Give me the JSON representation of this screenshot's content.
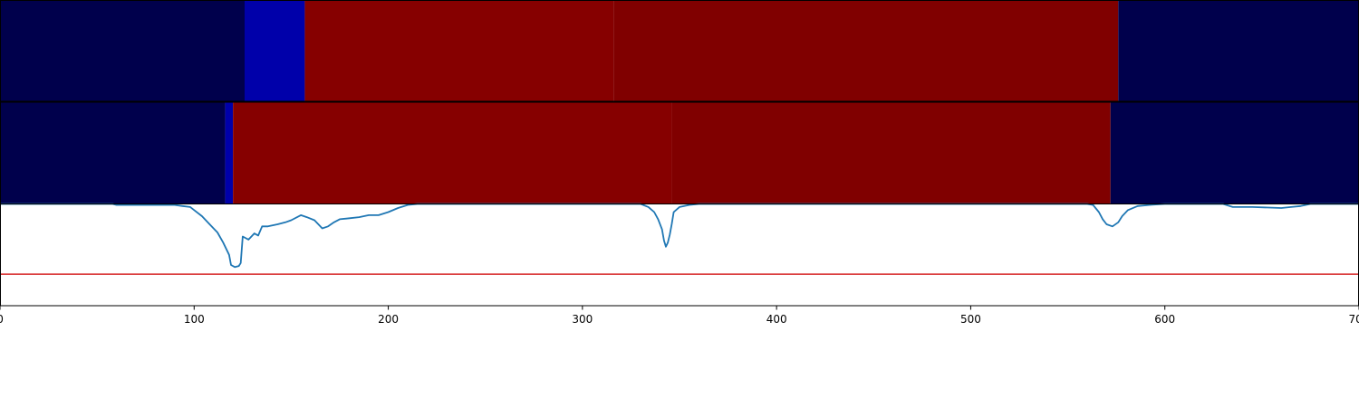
{
  "chart_data": [
    {
      "type": "heatmap",
      "xlim": [
        0,
        700
      ],
      "segments": [
        {
          "x0": 0,
          "x1": 126,
          "color": "#00004c"
        },
        {
          "x0": 126,
          "x1": 157,
          "color": "#0000aa"
        },
        {
          "x0": 157,
          "x1": 316,
          "color": "#860000"
        },
        {
          "x0": 316,
          "x1": 576,
          "color": "#800000"
        },
        {
          "x0": 576,
          "x1": 700,
          "color": "#00004c"
        }
      ]
    },
    {
      "type": "heatmap",
      "xlim": [
        0,
        700
      ],
      "segments": [
        {
          "x0": 0,
          "x1": 116,
          "color": "#00004c"
        },
        {
          "x0": 116,
          "x1": 120,
          "color": "#0000aa"
        },
        {
          "x0": 120,
          "x1": 346,
          "color": "#860000"
        },
        {
          "x0": 346,
          "x1": 572,
          "color": "#800000"
        },
        {
          "x0": 572,
          "x1": 700,
          "color": "#00004c"
        }
      ]
    },
    {
      "type": "line",
      "xlim": [
        0,
        700
      ],
      "ylim": [
        0,
        1
      ],
      "xticks": [
        0,
        100,
        200,
        300,
        400,
        500,
        600,
        700
      ],
      "threshold": {
        "y": 0.31,
        "color": "#d62728"
      },
      "series": [
        {
          "color": "#1f77b4",
          "points": [
            [
              0,
              1.0
            ],
            [
              58,
              1.0
            ],
            [
              60,
              0.99
            ],
            [
              90,
              0.99
            ],
            [
              94,
              0.98
            ],
            [
              98,
              0.97
            ],
            [
              100,
              0.94
            ],
            [
              104,
              0.88
            ],
            [
              108,
              0.8
            ],
            [
              112,
              0.72
            ],
            [
              115,
              0.62
            ],
            [
              118,
              0.5
            ],
            [
              119,
              0.4
            ],
            [
              121,
              0.38
            ],
            [
              123,
              0.39
            ],
            [
              124,
              0.42
            ],
            [
              125,
              0.68
            ],
            [
              128,
              0.65
            ],
            [
              131,
              0.71
            ],
            [
              133,
              0.69
            ],
            [
              135,
              0.78
            ],
            [
              138,
              0.78
            ],
            [
              143,
              0.8
            ],
            [
              147,
              0.82
            ],
            [
              150,
              0.84
            ],
            [
              155,
              0.89
            ],
            [
              158,
              0.87
            ],
            [
              162,
              0.84
            ],
            [
              164,
              0.8
            ],
            [
              166,
              0.76
            ],
            [
              169,
              0.78
            ],
            [
              172,
              0.82
            ],
            [
              175,
              0.85
            ],
            [
              180,
              0.86
            ],
            [
              185,
              0.87
            ],
            [
              190,
              0.89
            ],
            [
              195,
              0.89
            ],
            [
              200,
              0.92
            ],
            [
              205,
              0.96
            ],
            [
              210,
              0.99
            ],
            [
              215,
              1.0
            ],
            [
              310,
              1.0
            ],
            [
              320,
              1.0
            ],
            [
              330,
              1.0
            ],
            [
              334,
              0.97
            ],
            [
              337,
              0.92
            ],
            [
              339,
              0.85
            ],
            [
              341,
              0.75
            ],
            [
              342,
              0.64
            ],
            [
              343,
              0.58
            ],
            [
              344,
              0.62
            ],
            [
              345,
              0.7
            ],
            [
              346,
              0.8
            ],
            [
              347,
              0.92
            ],
            [
              350,
              0.97
            ],
            [
              355,
              0.99
            ],
            [
              360,
              1.0
            ],
            [
              560,
              1.0
            ],
            [
              563,
              0.99
            ],
            [
              566,
              0.92
            ],
            [
              568,
              0.85
            ],
            [
              570,
              0.8
            ],
            [
              573,
              0.78
            ],
            [
              576,
              0.82
            ],
            [
              578,
              0.88
            ],
            [
              581,
              0.94
            ],
            [
              586,
              0.98
            ],
            [
              592,
              0.99
            ],
            [
              600,
              1.0
            ],
            [
              630,
              1.0
            ],
            [
              635,
              0.97
            ],
            [
              645,
              0.97
            ],
            [
              660,
              0.96
            ],
            [
              665,
              0.97
            ],
            [
              670,
              0.98
            ],
            [
              675,
              1.0
            ],
            [
              700,
              1.0
            ]
          ]
        }
      ]
    }
  ]
}
